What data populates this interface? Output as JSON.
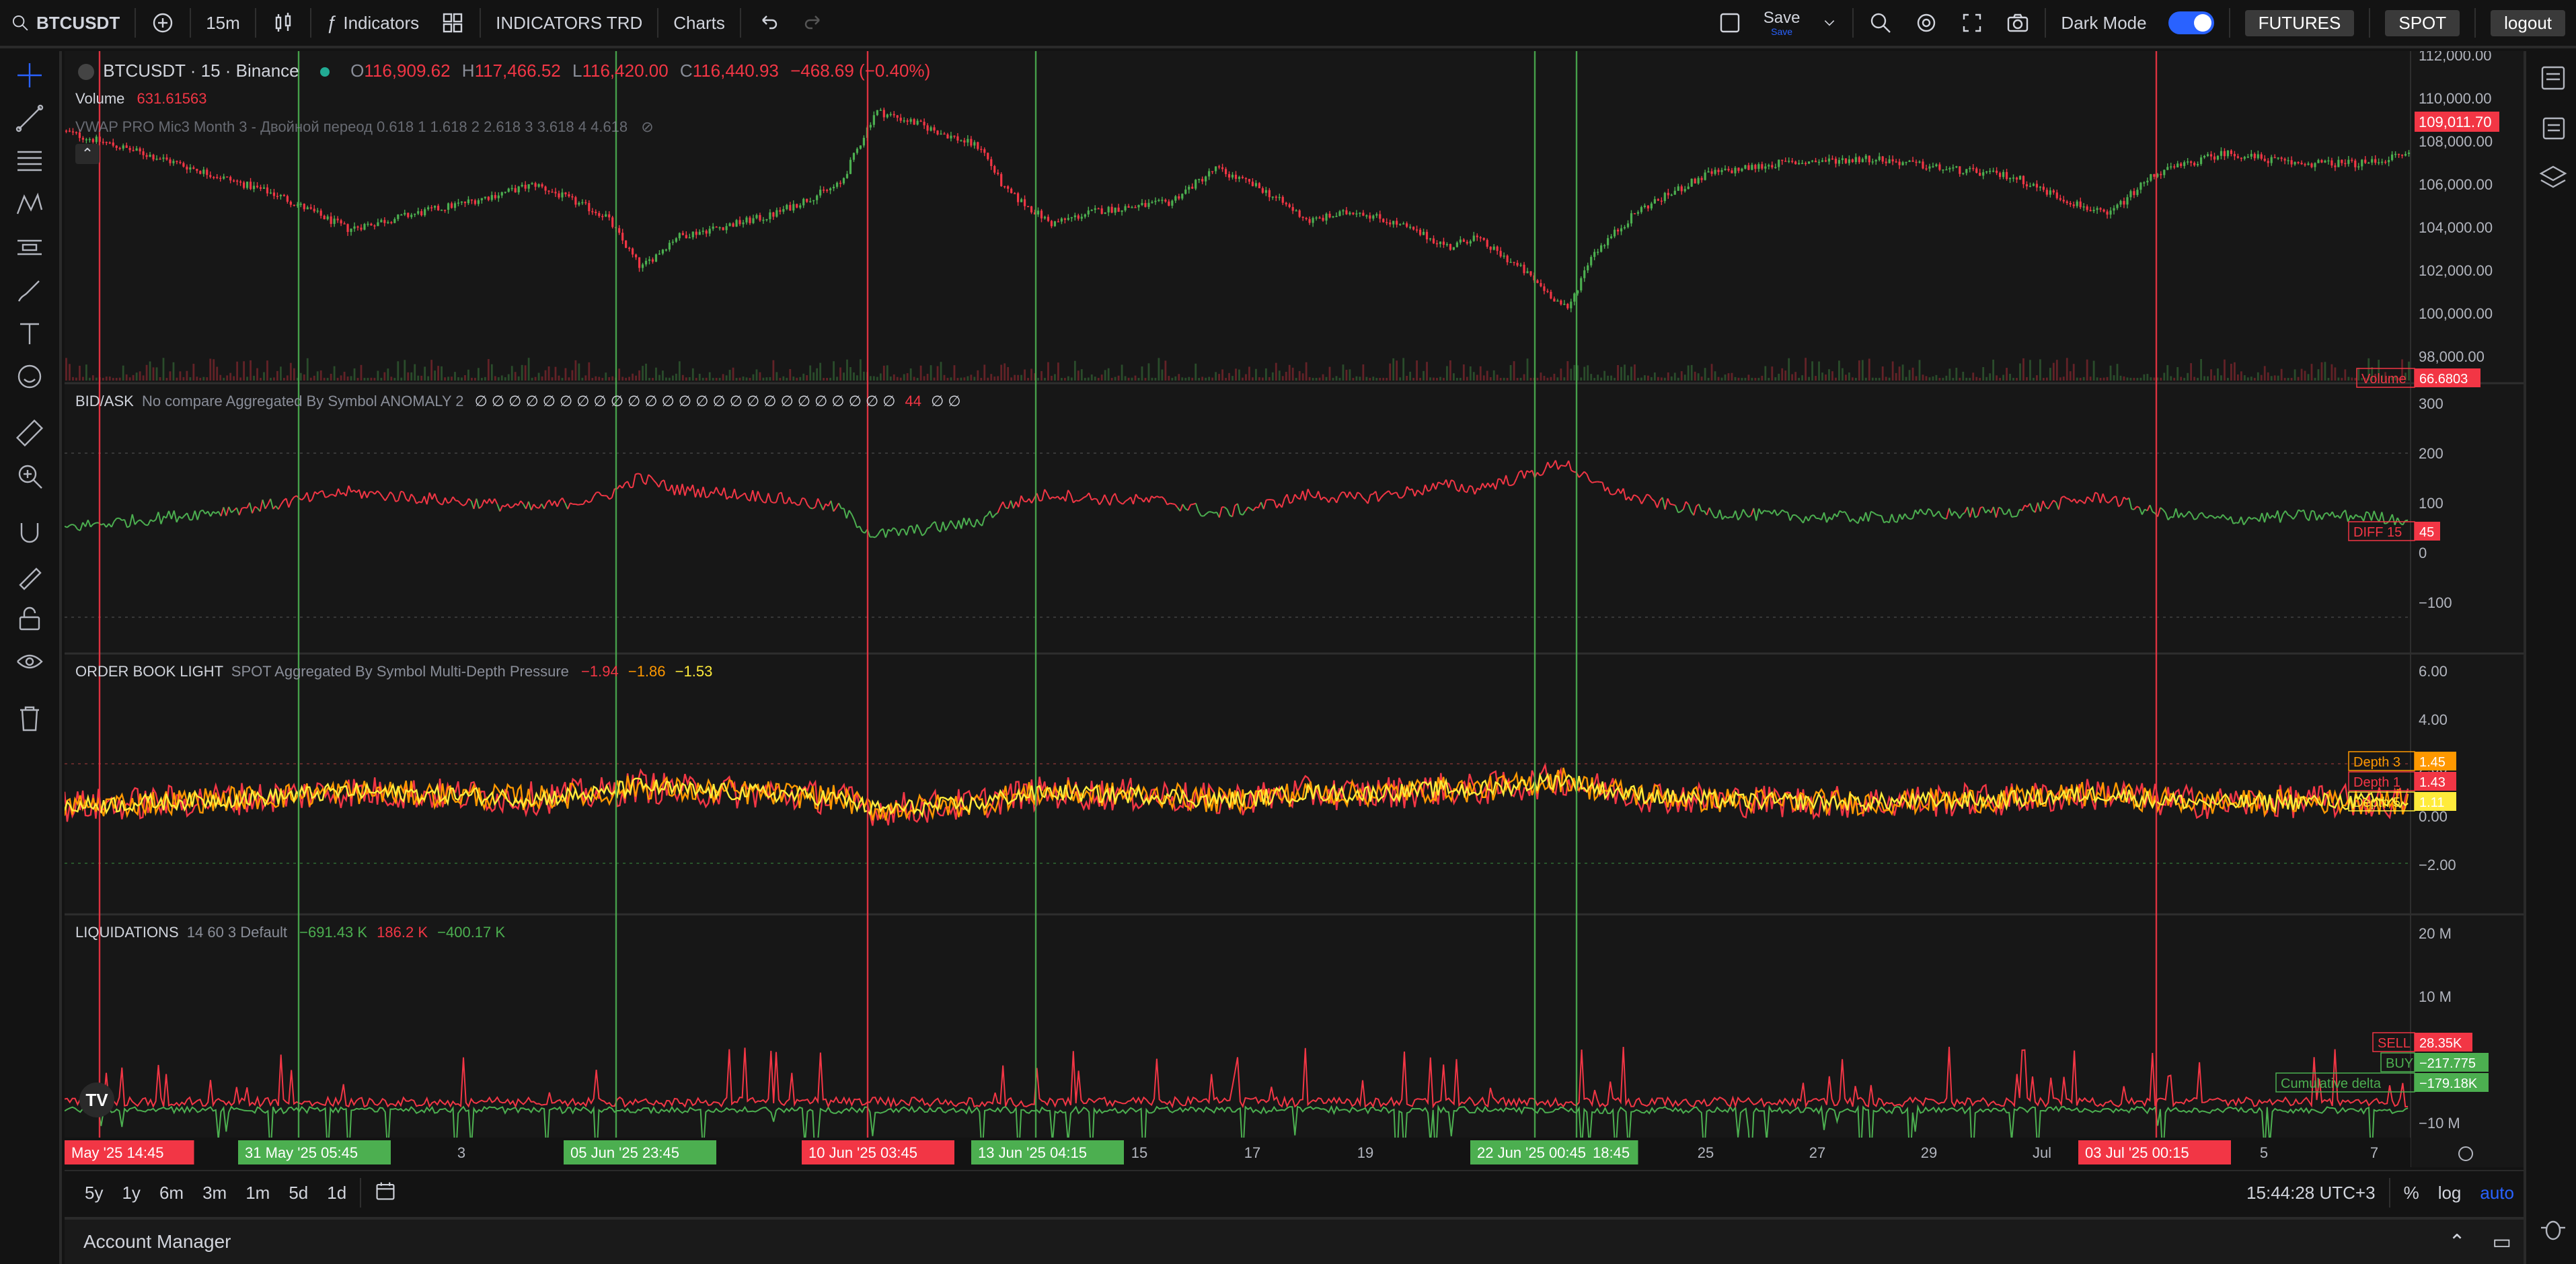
{
  "toolbar": {
    "symbol": "BTCUSDT",
    "interval": "15m",
    "indicators_label": "Indicators",
    "templates_label": "INDICATORS TRD",
    "charts_label": "Charts",
    "save_label": "Save",
    "save_sub": "Save",
    "dark_mode_label": "Dark Mode",
    "futures_label": "FUTURES",
    "spot_label": "SPOT",
    "logout_label": "logout"
  },
  "main_legend": {
    "title": "BTCUSDT · 15 · Binance",
    "o_label": "O",
    "o_value": "116,909.62",
    "h_label": "H",
    "h_value": "117,466.52",
    "l_label": "L",
    "l_value": "116,420.00",
    "c_label": "C",
    "c_value": "116,440.93",
    "change": "−468.69 (−0.40%)",
    "volume_label": "Volume",
    "volume_value": "631.61563",
    "vwap_text": "VWAP PRO Mic3 Month 3 - Двойной переод 0.618 1 1.618 2 2.618 3 3.618 4 4.618"
  },
  "bidask_legend": {
    "name": "BID/ASK",
    "params": "No compare Aggregated By Symbol ANOMALY 2",
    "zeros": "∅ ∅ ∅ ∅ ∅ ∅ ∅ ∅ ∅ ∅ ∅ ∅ ∅ ∅ ∅ ∅ ∅ ∅ ∅ ∅ ∅ ∅ ∅ ∅ ∅",
    "value": "44",
    "tail": "∅ ∅"
  },
  "orderbook_legend": {
    "name": "ORDER BOOK LIGHT",
    "params": "SPOT Aggregated By Symbol Multi-Depth Pressure",
    "v1": "−1.94",
    "v2": "−1.86",
    "v3": "−1.53"
  },
  "liq_legend": {
    "name": "LIQUIDATIONS",
    "params": "14 60 3 Default",
    "v1": "−691.43 K",
    "v2": "186.2 K",
    "v3": "−400.17 K"
  },
  "price_axis": {
    "ticks": [
      "112,000.00",
      "110,000.00",
      "108,000.00",
      "106,000.00",
      "104,000.00",
      "102,000.00",
      "100,000.00",
      "98,000.00"
    ],
    "current_price": "109,011.70",
    "volume_tag_label": "Volume",
    "volume_tag_value": "66.6803"
  },
  "bidask_axis": {
    "ticks": [
      "300",
      "200",
      "100",
      "0",
      "−100"
    ],
    "diff_label": "DIFF 15",
    "diff_value": "45"
  },
  "orderbook_axis": {
    "ticks": [
      "6.00",
      "4.00",
      "2.00",
      "0.00",
      "−2.00"
    ],
    "tags": [
      {
        "label": "Depth 3",
        "value": "1.45",
        "color": "#ff9800"
      },
      {
        "label": "Depth 1",
        "value": "1.43",
        "color": "#f23645"
      },
      {
        "label": "Depth 5",
        "value": "1.11",
        "color": "#ffeb3b"
      }
    ]
  },
  "liq_axis": {
    "ticks": [
      "20 M",
      "10 M",
      "0",
      "−10 M"
    ],
    "tags": [
      {
        "label": "SELL",
        "value": "28.35K",
        "color": "#f23645"
      },
      {
        "label": "BUY",
        "value": "−217.775",
        "color": "#4caf50"
      },
      {
        "label": "Cumulative delta",
        "value": "−179.18K",
        "color": "#4caf50"
      }
    ]
  },
  "time_axis": {
    "ticks": [
      "29",
      "3",
      "15",
      "17",
      "19",
      "25",
      "27",
      "29",
      "Jul",
      "5",
      "7"
    ],
    "markers": [
      {
        "label": "May '25   14:45",
        "color": "#f23645"
      },
      {
        "label": "31 May '25   05:45",
        "color": "#4caf50"
      },
      {
        "label": "05 Jun '25   23:45",
        "color": "#4caf50"
      },
      {
        "label": "10 Jun '25   03:45",
        "color": "#f23645"
      },
      {
        "label": "13 Jun '25   04:15",
        "color": "#4caf50"
      },
      {
        "label": "22 Jun '25   00:45",
        "color": "#4caf50"
      },
      {
        "label": "18:45",
        "color": "#4caf50"
      },
      {
        "label": "03 Jul '25   00:15",
        "color": "#f23645"
      }
    ]
  },
  "range_bar": {
    "ranges": [
      "5y",
      "1y",
      "6m",
      "3m",
      "1m",
      "5d",
      "1d"
    ],
    "clock": "15:44:28 UTC+3",
    "percent_label": "%",
    "log_label": "log",
    "auto_label": "auto"
  },
  "account_bar": {
    "title": "Account Manager"
  },
  "colors": {
    "up": "#4caf50",
    "down": "#f23645",
    "orange": "#ff9800",
    "yellow": "#ffeb3b",
    "accent": "#2962ff"
  }
}
